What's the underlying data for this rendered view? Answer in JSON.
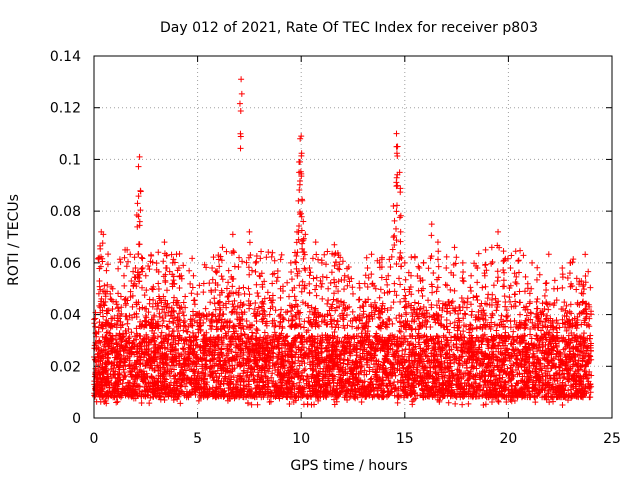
{
  "chart_data": {
    "type": "scatter",
    "title": "Day 012 of 2021, Rate Of TEC Index for receiver p803",
    "xlabel": "GPS time / hours",
    "ylabel": "ROTI / TECUs",
    "xlim": [
      0,
      24
    ],
    "ylim": [
      0,
      0.14
    ],
    "x_ticks": [
      0,
      5,
      10,
      15,
      20,
      25
    ],
    "x_tick_labels": [
      "0",
      "5",
      "10",
      "15",
      "20",
      "25"
    ],
    "y_ticks": [
      0,
      0.02,
      0.04,
      0.06,
      0.08,
      0.1,
      0.12,
      0.14
    ],
    "y_tick_labels": [
      "0",
      "0.02",
      "0.04",
      "0.06",
      "0.08",
      "0.1",
      "0.12",
      "0.14"
    ],
    "grid": true,
    "marker": "+",
    "marker_color": "#ff0000",
    "series": [
      {
        "name": "ROTI",
        "points": [
          [
            0.1,
            0.033
          ],
          [
            0.25,
            0.062
          ],
          [
            0.35,
            0.072
          ],
          [
            0.45,
            0.071
          ],
          [
            0.55,
            0.048
          ],
          [
            0.6,
            0.057
          ],
          [
            0.9,
            0.05
          ],
          [
            1.1,
            0.044
          ],
          [
            1.3,
            0.047
          ],
          [
            1.5,
            0.065
          ],
          [
            1.6,
            0.065
          ],
          [
            1.8,
            0.053
          ],
          [
            2.0,
            0.058
          ],
          [
            2.1,
            0.083
          ],
          [
            2.15,
            0.078
          ],
          [
            2.2,
            0.101
          ],
          [
            2.3,
            0.062
          ],
          [
            2.5,
            0.055
          ],
          [
            2.8,
            0.05
          ],
          [
            3.1,
            0.052
          ],
          [
            3.4,
            0.068
          ],
          [
            3.5,
            0.063
          ],
          [
            3.8,
            0.06
          ],
          [
            4.1,
            0.058
          ],
          [
            4.4,
            0.047
          ],
          [
            4.8,
            0.055
          ],
          [
            5.3,
            0.052
          ],
          [
            5.7,
            0.058
          ],
          [
            6.0,
            0.063
          ],
          [
            6.2,
            0.066
          ],
          [
            6.5,
            0.057
          ],
          [
            6.7,
            0.071
          ],
          [
            7.0,
            0.062
          ],
          [
            7.1,
            0.131
          ],
          [
            7.5,
            0.072
          ],
          [
            7.8,
            0.06
          ],
          [
            8.1,
            0.056
          ],
          [
            8.6,
            0.052
          ],
          [
            9.0,
            0.05
          ],
          [
            9.5,
            0.06
          ],
          [
            9.7,
            0.064
          ],
          [
            9.8,
            0.072
          ],
          [
            9.9,
            0.095
          ],
          [
            9.95,
            0.108
          ],
          [
            10.0,
            0.109
          ],
          [
            10.05,
            0.084
          ],
          [
            10.1,
            0.076
          ],
          [
            10.2,
            0.071
          ],
          [
            10.4,
            0.058
          ],
          [
            10.7,
            0.068
          ],
          [
            11.0,
            0.06
          ],
          [
            11.3,
            0.05
          ],
          [
            11.6,
            0.067
          ],
          [
            11.8,
            0.063
          ],
          [
            12.1,
            0.055
          ],
          [
            12.5,
            0.048
          ],
          [
            12.8,
            0.052
          ],
          [
            13.2,
            0.058
          ],
          [
            13.6,
            0.05
          ],
          [
            13.9,
            0.062
          ],
          [
            14.2,
            0.055
          ],
          [
            14.45,
            0.082
          ],
          [
            14.6,
            0.11
          ],
          [
            14.65,
            0.105
          ],
          [
            14.75,
            0.095
          ],
          [
            14.8,
            0.072
          ],
          [
            15.0,
            0.06
          ],
          [
            15.3,
            0.055
          ],
          [
            15.7,
            0.058
          ],
          [
            15.9,
            0.06
          ],
          [
            16.3,
            0.075
          ],
          [
            16.6,
            0.068
          ],
          [
            17.0,
            0.058
          ],
          [
            17.4,
            0.066
          ],
          [
            17.8,
            0.06
          ],
          [
            18.2,
            0.055
          ],
          [
            18.5,
            0.058
          ],
          [
            18.9,
            0.065
          ],
          [
            19.2,
            0.066
          ],
          [
            19.5,
            0.072
          ],
          [
            19.8,
            0.061
          ],
          [
            20.1,
            0.058
          ],
          [
            20.3,
            0.056
          ],
          [
            20.5,
            0.061
          ],
          [
            20.8,
            0.049
          ],
          [
            21.1,
            0.05
          ],
          [
            21.4,
            0.046
          ],
          [
            21.8,
            0.052
          ],
          [
            22.2,
            0.05
          ],
          [
            22.6,
            0.058
          ],
          [
            23.0,
            0.06
          ],
          [
            23.3,
            0.054
          ],
          [
            23.6,
            0.051
          ],
          [
            23.9,
            0.043
          ]
        ]
      }
    ],
    "dense_band": {
      "description_range": "bulk of points concentrated between these ROTI values",
      "x_range": [
        0,
        24
      ],
      "y_low": 0.005,
      "y_typical_high": 0.045
    }
  }
}
